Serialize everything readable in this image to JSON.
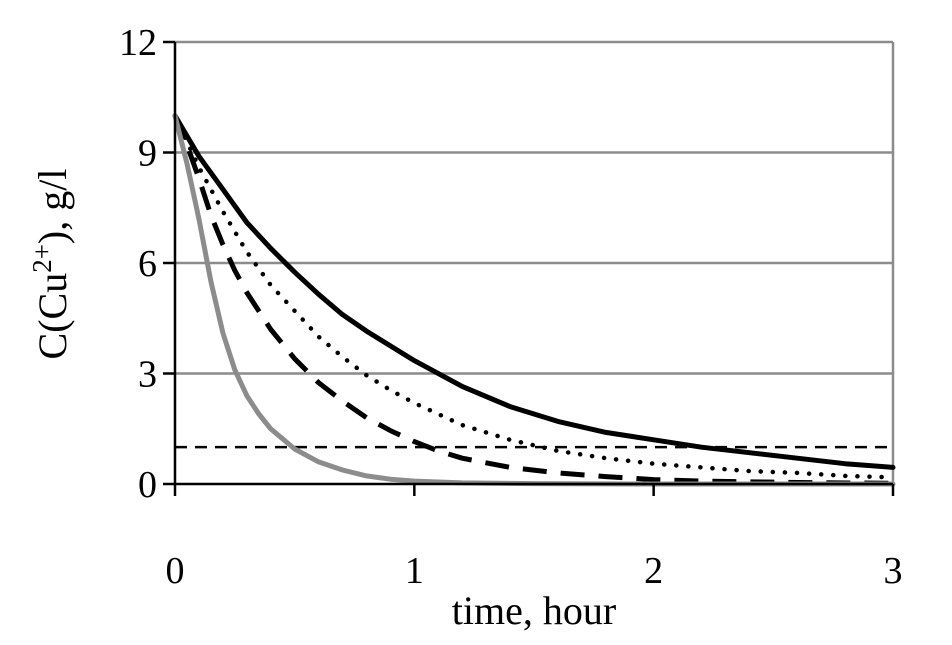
{
  "chart_data": {
    "type": "line",
    "title": "",
    "xlabel": "time, hour",
    "ylabel_parts": {
      "prefix": "C(Cu",
      "superscript": "2+",
      "suffix": "), g/l"
    },
    "xlim": [
      0,
      3
    ],
    "ylim": [
      0,
      12
    ],
    "xticks": [
      "0",
      "1",
      "2",
      "3"
    ],
    "yticks": [
      "0",
      "3",
      "6",
      "9",
      "12"
    ],
    "grid": "horizontal",
    "legend": "none",
    "colors": {
      "black": "#000000",
      "gray": "#8c8c8c",
      "grid": "#8c8c8c"
    },
    "reference_line": {
      "y": 1.0,
      "style": "dashed",
      "color": "#000000"
    },
    "series": [
      {
        "style": "solid",
        "color": "#000000",
        "x": [
          0,
          0.1,
          0.2,
          0.3,
          0.4,
          0.5,
          0.6,
          0.7,
          0.8,
          0.9,
          1.0,
          1.2,
          1.4,
          1.6,
          1.8,
          2.0,
          2.2,
          2.4,
          2.6,
          2.8,
          3.0
        ],
        "y": [
          10.0,
          8.9,
          8.0,
          7.1,
          6.4,
          5.75,
          5.15,
          4.6,
          4.15,
          3.75,
          3.35,
          2.65,
          2.1,
          1.7,
          1.4,
          1.2,
          1.0,
          0.85,
          0.7,
          0.55,
          0.45
        ]
      },
      {
        "style": "dotted",
        "color": "#000000",
        "x": [
          0,
          0.1,
          0.2,
          0.3,
          0.4,
          0.5,
          0.6,
          0.7,
          0.8,
          0.9,
          1.0,
          1.2,
          1.4,
          1.6,
          1.8,
          2.0,
          2.2,
          2.4,
          2.6,
          2.8,
          3.0
        ],
        "y": [
          10.0,
          8.6,
          7.4,
          6.3,
          5.4,
          4.7,
          4.0,
          3.45,
          2.95,
          2.55,
          2.2,
          1.6,
          1.2,
          0.9,
          0.7,
          0.55,
          0.45,
          0.35,
          0.3,
          0.22,
          0.18
        ]
      },
      {
        "style": "dashed",
        "color": "#000000",
        "x": [
          0,
          0.05,
          0.1,
          0.15,
          0.2,
          0.25,
          0.3,
          0.4,
          0.5,
          0.6,
          0.7,
          0.8,
          0.9,
          1.0,
          1.1,
          1.2,
          1.4,
          1.6,
          1.8,
          2.0,
          2.2,
          2.6,
          3.0
        ],
        "y": [
          10.0,
          9.2,
          8.3,
          7.3,
          6.5,
          5.8,
          5.2,
          4.2,
          3.4,
          2.75,
          2.25,
          1.8,
          1.45,
          1.15,
          0.9,
          0.7,
          0.45,
          0.3,
          0.2,
          0.12,
          0.08,
          0.04,
          0.02
        ]
      },
      {
        "style": "solid",
        "color": "#8c8c8c",
        "x": [
          0,
          0.05,
          0.1,
          0.15,
          0.2,
          0.25,
          0.3,
          0.35,
          0.4,
          0.5,
          0.6,
          0.7,
          0.8,
          0.9,
          1.0,
          1.2,
          1.5,
          2.0,
          2.5,
          3.0
        ],
        "y": [
          10.0,
          8.7,
          7.2,
          5.5,
          4.1,
          3.1,
          2.4,
          1.9,
          1.5,
          0.95,
          0.6,
          0.38,
          0.22,
          0.13,
          0.08,
          0.03,
          0.01,
          0.0,
          0.0,
          0.0
        ]
      }
    ]
  }
}
